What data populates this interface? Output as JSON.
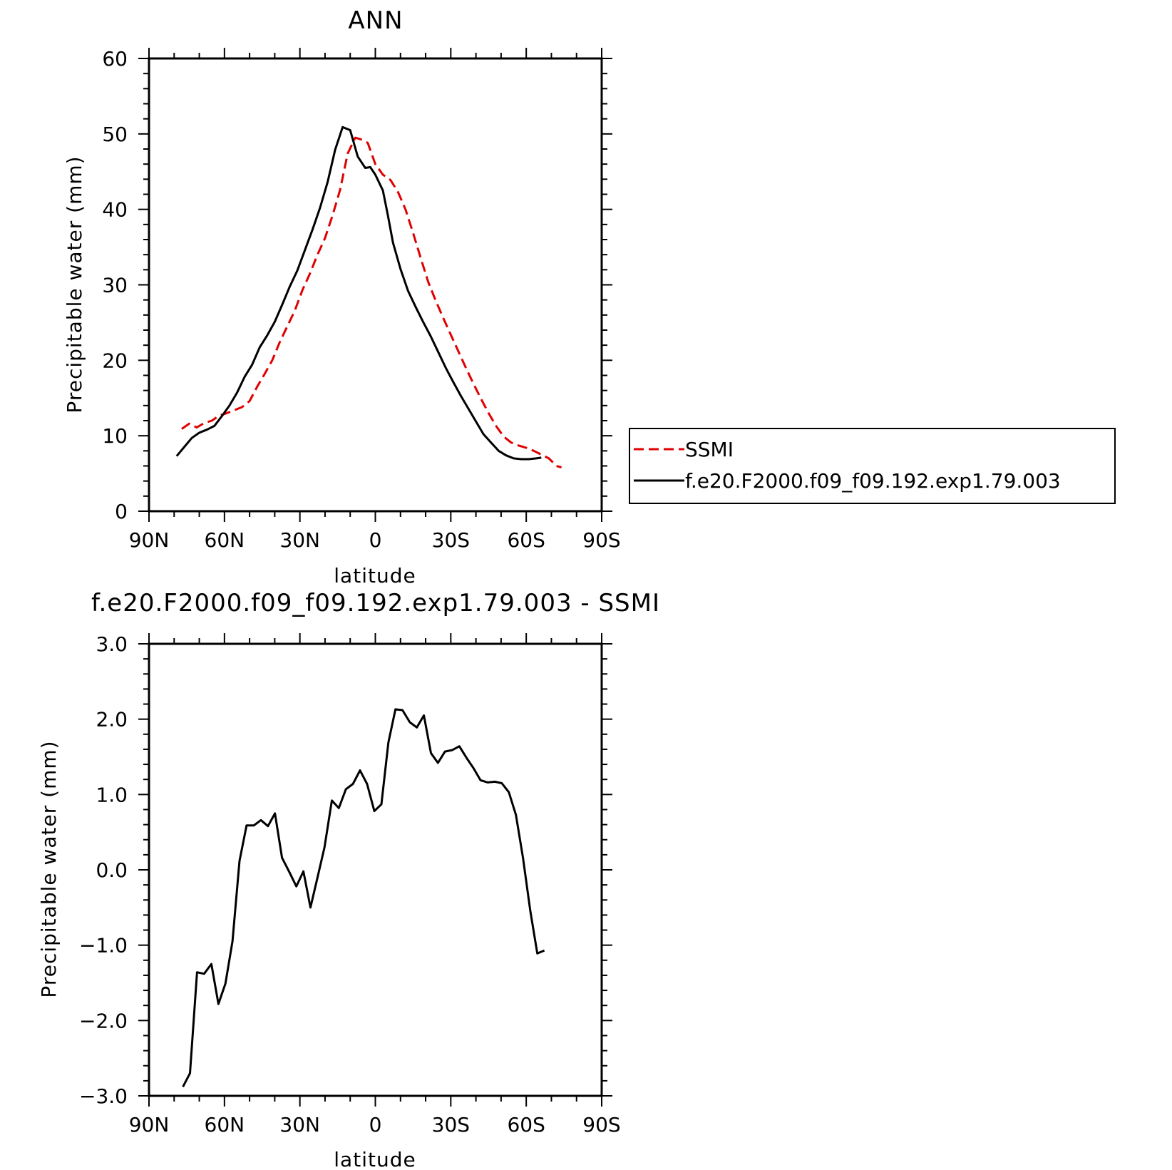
{
  "chart_data": [
    {
      "type": "line",
      "title": "ANN",
      "xlabel": "latitude",
      "ylabel": "Precipitable water (mm)",
      "xlim": [
        90,
        -90
      ],
      "ylim": [
        0,
        60
      ],
      "xticks": [
        90,
        60,
        30,
        0,
        -30,
        -60,
        -90
      ],
      "xtick_labels": [
        "90N",
        "60N",
        "30N",
        "0",
        "30S",
        "60S",
        "90S"
      ],
      "yticks": [
        0,
        10,
        20,
        30,
        40,
        50,
        60
      ],
      "ytick_labels": [
        "0",
        "10",
        "20",
        "30",
        "40",
        "50",
        "60"
      ],
      "legend": "right",
      "series": [
        {
          "name": "SSMI",
          "color": "#e00000",
          "dash": "dashed",
          "x": [
            77,
            74,
            71,
            68,
            65,
            62,
            59,
            56,
            53,
            50,
            47,
            44,
            41,
            38,
            35,
            32,
            29,
            26,
            23,
            20,
            17,
            14,
            11,
            8,
            5,
            3,
            0,
            -3,
            -6,
            -9,
            -12,
            -15,
            -18,
            -21,
            -24,
            -27,
            -30,
            -33,
            -36,
            -39,
            -42,
            -45,
            -48,
            -51,
            -54,
            -57,
            -60,
            -63,
            -66,
            -69,
            -72,
            -74
          ],
          "y": [
            10.9,
            11.6,
            11.1,
            11.7,
            12.0,
            12.7,
            13.0,
            13.4,
            13.8,
            14.6,
            16.5,
            18.2,
            20.0,
            22.4,
            24.5,
            26.6,
            29.3,
            31.5,
            34.0,
            36.2,
            39.2,
            42.6,
            47.4,
            49.5,
            49.2,
            48.8,
            46.0,
            44.6,
            43.9,
            42.3,
            40.0,
            36.9,
            33.6,
            30.4,
            27.9,
            25.6,
            23.4,
            21.2,
            19.0,
            16.9,
            14.9,
            13.0,
            11.3,
            9.9,
            9.1,
            8.7,
            8.4,
            8.0,
            7.5,
            7.0,
            6.0,
            5.8
          ]
        },
        {
          "name": "f.e20.F2000.f09_f09.192.exp1.79.003",
          "color": "#000000",
          "dash": "solid",
          "x": [
            79,
            76,
            73,
            70,
            67,
            64,
            61,
            58,
            55,
            52,
            49,
            46,
            43,
            40,
            37,
            34,
            31,
            28,
            25,
            22,
            19,
            16,
            13,
            10,
            7,
            4,
            2,
            0,
            -3,
            -5,
            -7,
            -10,
            -13,
            -16,
            -19,
            -22,
            -25,
            -28,
            -31,
            -34,
            -37,
            -40,
            -43,
            -46,
            -49,
            -52,
            -55,
            -58,
            -61,
            -64,
            -66
          ],
          "y": [
            7.3,
            8.5,
            9.7,
            10.4,
            10.8,
            11.3,
            12.6,
            14.0,
            15.7,
            17.8,
            19.4,
            21.7,
            23.3,
            25.1,
            27.4,
            29.8,
            31.9,
            34.6,
            37.3,
            40.2,
            43.6,
            47.9,
            50.9,
            50.5,
            47.0,
            45.5,
            45.6,
            44.6,
            42.5,
            39.2,
            35.6,
            32.1,
            29.2,
            27.1,
            25.1,
            23.2,
            21.1,
            19.0,
            17.1,
            15.3,
            13.6,
            11.9,
            10.2,
            9.1,
            8.0,
            7.4,
            7.0,
            6.9,
            6.9,
            7.0,
            7.1
          ]
        }
      ]
    },
    {
      "type": "line",
      "title": "f.e20.F2000.f09_f09.192.exp1.79.003 - SSMI",
      "xlabel": "latitude",
      "ylabel": "Precipitable water (mm)",
      "xlim": [
        90,
        -90
      ],
      "ylim": [
        -3.0,
        3.0
      ],
      "xticks": [
        90,
        60,
        30,
        0,
        -30,
        -60,
        -90
      ],
      "xtick_labels": [
        "90N",
        "60N",
        "30N",
        "0",
        "30S",
        "60S",
        "90S"
      ],
      "yticks": [
        -3.0,
        -2.0,
        -1.0,
        0.0,
        1.0,
        2.0,
        3.0
      ],
      "ytick_labels": [
        "-3.0",
        "-2.0",
        "-1.0",
        "0.0",
        "1.0",
        "2.0",
        "3.0"
      ],
      "series": [
        {
          "color": "#000000",
          "dash": "solid",
          "x": [
            76.5,
            73.7,
            70.9,
            68.1,
            65.2,
            62.4,
            59.6,
            56.8,
            54.0,
            51.2,
            48.3,
            45.5,
            42.7,
            39.9,
            37.1,
            34.2,
            31.4,
            28.6,
            25.8,
            23.0,
            20.2,
            17.3,
            14.5,
            11.7,
            8.9,
            6.1,
            3.3,
            0.4,
            -2.4,
            -5.2,
            -8.0,
            -10.8,
            -13.7,
            -16.5,
            -19.3,
            -22.1,
            -24.9,
            -27.7,
            -30.6,
            -33.4,
            -36.2,
            -39.0,
            -41.8,
            -44.7,
            -47.5,
            -50.3,
            -53.1,
            -55.9,
            -58.7,
            -61.6,
            -64.4,
            -67.2
          ],
          "y": [
            -2.88,
            -2.7,
            -1.36,
            -1.38,
            -1.25,
            -1.78,
            -1.51,
            -0.95,
            0.12,
            0.59,
            0.59,
            0.66,
            0.58,
            0.75,
            0.16,
            -0.03,
            -0.22,
            -0.02,
            -0.5,
            -0.1,
            0.3,
            0.92,
            0.82,
            1.07,
            1.14,
            1.32,
            1.14,
            0.78,
            0.87,
            1.69,
            2.13,
            2.12,
            1.96,
            1.89,
            2.05,
            1.55,
            1.42,
            1.57,
            1.59,
            1.64,
            1.49,
            1.35,
            1.19,
            1.16,
            1.17,
            1.15,
            1.03,
            0.73,
            0.16,
            -0.54,
            -1.11,
            -1.07
          ]
        }
      ]
    }
  ]
}
